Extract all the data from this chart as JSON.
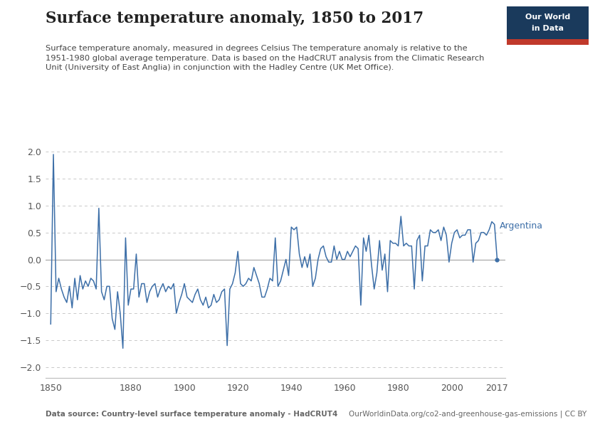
{
  "title": "Surface temperature anomaly, 1850 to 2017",
  "subtitle": "Surface temperature anomaly, measured in degrees Celsius The temperature anomaly is relative to the\n1951-1980 global average temperature. Data is based on the HadCRUT analysis from the Climatic Research\nUnit (University of East Anglia) in conjunction with the Hadley Centre (UK Met Office).",
  "footer_left": "Data source: Country-level surface temperature anomaly - HadCRUT4",
  "footer_right": "OurWorldinData.org/co2-and-greenhouse-gas-emissions | CC BY",
  "label": "Argentina",
  "line_color": "#3d6fa8",
  "label_color": "#3d6fa8",
  "bg_color": "#ffffff",
  "grid_color": "#c8c8c8",
  "zero_line_color": "#aaaaaa",
  "title_color": "#222222",
  "subtitle_color": "#444444",
  "footer_color": "#666666",
  "ylim": [
    -2.2,
    2.2
  ],
  "yticks": [
    -2,
    -1.5,
    -1,
    -0.5,
    0,
    0.5,
    1,
    1.5,
    2
  ],
  "xlim": [
    1848,
    2020
  ],
  "xticks": [
    1850,
    1880,
    1900,
    1920,
    1940,
    1960,
    1980,
    2000,
    2017
  ],
  "years": [
    1850,
    1851,
    1852,
    1853,
    1854,
    1855,
    1856,
    1857,
    1858,
    1859,
    1860,
    1861,
    1862,
    1863,
    1864,
    1865,
    1866,
    1867,
    1868,
    1869,
    1870,
    1871,
    1872,
    1873,
    1874,
    1875,
    1876,
    1877,
    1878,
    1879,
    1880,
    1881,
    1882,
    1883,
    1884,
    1885,
    1886,
    1887,
    1888,
    1889,
    1890,
    1891,
    1892,
    1893,
    1894,
    1895,
    1896,
    1897,
    1898,
    1899,
    1900,
    1901,
    1902,
    1903,
    1904,
    1905,
    1906,
    1907,
    1908,
    1909,
    1910,
    1911,
    1912,
    1913,
    1914,
    1915,
    1916,
    1917,
    1918,
    1919,
    1920,
    1921,
    1922,
    1923,
    1924,
    1925,
    1926,
    1927,
    1928,
    1929,
    1930,
    1931,
    1932,
    1933,
    1934,
    1935,
    1936,
    1937,
    1938,
    1939,
    1940,
    1941,
    1942,
    1943,
    1944,
    1945,
    1946,
    1947,
    1948,
    1949,
    1950,
    1951,
    1952,
    1953,
    1954,
    1955,
    1956,
    1957,
    1958,
    1959,
    1960,
    1961,
    1962,
    1963,
    1964,
    1965,
    1966,
    1967,
    1968,
    1969,
    1970,
    1971,
    1972,
    1973,
    1974,
    1975,
    1976,
    1977,
    1978,
    1979,
    1980,
    1981,
    1982,
    1983,
    1984,
    1985,
    1986,
    1987,
    1988,
    1989,
    1990,
    1991,
    1992,
    1993,
    1994,
    1995,
    1996,
    1997,
    1998,
    1999,
    2000,
    2001,
    2002,
    2003,
    2004,
    2005,
    2006,
    2007,
    2008,
    2009,
    2010,
    2011,
    2012,
    2013,
    2014,
    2015,
    2016,
    2017
  ],
  "values": [
    -1.2,
    1.95,
    -0.6,
    -0.35,
    -0.55,
    -0.7,
    -0.8,
    -0.5,
    -0.9,
    -0.35,
    -0.75,
    -0.3,
    -0.55,
    -0.4,
    -0.5,
    -0.35,
    -0.4,
    -0.55,
    0.95,
    -0.6,
    -0.75,
    -0.5,
    -0.5,
    -1.1,
    -1.3,
    -0.6,
    -1.0,
    -1.65,
    0.4,
    -0.85,
    -0.55,
    -0.55,
    0.1,
    -0.7,
    -0.45,
    -0.45,
    -0.8,
    -0.6,
    -0.5,
    -0.45,
    -0.7,
    -0.55,
    -0.45,
    -0.6,
    -0.5,
    -0.55,
    -0.45,
    -1.0,
    -0.8,
    -0.65,
    -0.45,
    -0.7,
    -0.75,
    -0.8,
    -0.65,
    -0.55,
    -0.75,
    -0.85,
    -0.7,
    -0.9,
    -0.85,
    -0.65,
    -0.8,
    -0.75,
    -0.6,
    -0.55,
    -1.6,
    -0.55,
    -0.45,
    -0.25,
    0.15,
    -0.45,
    -0.5,
    -0.45,
    -0.35,
    -0.4,
    -0.15,
    -0.3,
    -0.45,
    -0.7,
    -0.7,
    -0.55,
    -0.35,
    -0.4,
    0.4,
    -0.5,
    -0.4,
    -0.2,
    0.0,
    -0.3,
    0.6,
    0.55,
    0.6,
    0.1,
    -0.15,
    0.05,
    -0.15,
    0.1,
    -0.5,
    -0.35,
    0.0,
    0.2,
    0.25,
    0.05,
    -0.05,
    -0.05,
    0.25,
    0.0,
    0.15,
    0.0,
    0.0,
    0.15,
    0.05,
    0.15,
    0.25,
    0.2,
    -0.85,
    0.4,
    0.15,
    0.45,
    -0.1,
    -0.55,
    -0.25,
    0.35,
    -0.2,
    0.1,
    -0.6,
    0.35,
    0.3,
    0.3,
    0.25,
    0.8,
    0.25,
    0.3,
    0.25,
    0.25,
    -0.55,
    0.35,
    0.45,
    -0.4,
    0.25,
    0.25,
    0.55,
    0.5,
    0.5,
    0.55,
    0.35,
    0.6,
    0.45,
    -0.05,
    0.3,
    0.5,
    0.55,
    0.4,
    0.45,
    0.45,
    0.55,
    0.55,
    -0.05,
    0.3,
    0.35,
    0.5,
    0.5,
    0.45,
    0.55,
    0.7,
    0.65,
    0.0
  ],
  "owid_box_color": "#1a3a5c",
  "owid_red": "#c0392b",
  "label_last_year": 2017,
  "label_last_val": 0.0
}
